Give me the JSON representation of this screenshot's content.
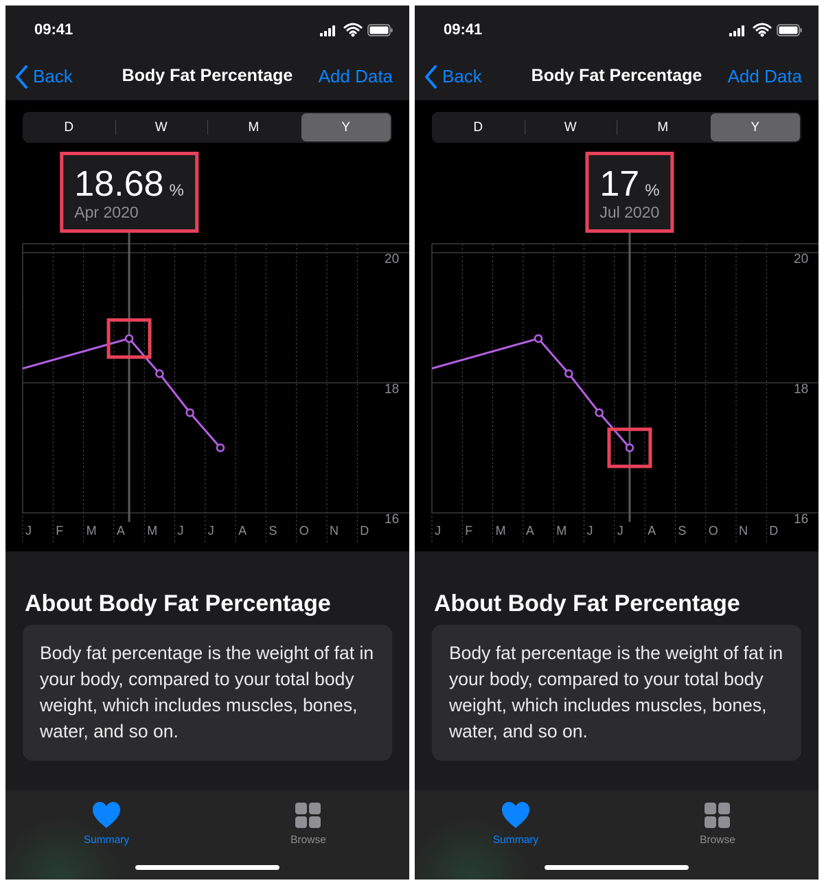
{
  "screens": [
    {
      "status_time": "09:41",
      "nav": {
        "back": "Back",
        "title": "Body Fat Percentage",
        "action": "Add Data"
      },
      "segments": [
        "D",
        "W",
        "M",
        "Y"
      ],
      "selected_segment": 3,
      "highlight": {
        "value": 18.68,
        "unit": "%",
        "date": "Apr 2020"
      },
      "chart_data": {
        "type": "line",
        "categories": [
          "J",
          "F",
          "M",
          "A",
          "M",
          "J",
          "J",
          "A",
          "S",
          "O",
          "N",
          "D"
        ],
        "values": [
          null,
          null,
          null,
          18.68,
          18.14,
          17.54,
          17,
          null,
          null,
          null,
          null,
          null
        ],
        "lead_in_value": 18.22,
        "selected": 3,
        "color": "#b35fe3",
        "ylim": [
          16,
          20
        ],
        "yticks": [
          16,
          18,
          20
        ],
        "grid": true
      },
      "about": {
        "title": "About Body Fat Percentage",
        "text": "Body fat percentage is the weight of fat in your body, compared to your total body weight, which includes muscles, bones, water, and so on."
      },
      "tabs": [
        {
          "label": "Summary",
          "active": true
        },
        {
          "label": "Browse",
          "active": false
        }
      ]
    },
    {
      "status_time": "09:41",
      "nav": {
        "back": "Back",
        "title": "Body Fat Percentage",
        "action": "Add Data"
      },
      "segments": [
        "D",
        "W",
        "M",
        "Y"
      ],
      "selected_segment": 3,
      "highlight": {
        "value": 17,
        "unit": "%",
        "date": "Jul 2020"
      },
      "chart_data": {
        "type": "line",
        "categories": [
          "J",
          "F",
          "M",
          "A",
          "M",
          "J",
          "J",
          "A",
          "S",
          "O",
          "N",
          "D"
        ],
        "values": [
          null,
          null,
          null,
          18.68,
          18.14,
          17.54,
          17,
          null,
          null,
          null,
          null,
          null
        ],
        "lead_in_value": 18.22,
        "selected": 6,
        "color": "#b35fe3",
        "ylim": [
          16,
          20
        ],
        "yticks": [
          16,
          18,
          20
        ],
        "grid": true
      },
      "about": {
        "title": "About Body Fat Percentage",
        "text": "Body fat percentage is the weight of fat in your body, compared to your total body weight, which includes muscles, bones, water, and so on."
      },
      "tabs": [
        {
          "label": "Summary",
          "active": true
        },
        {
          "label": "Browse",
          "active": false
        }
      ]
    }
  ]
}
